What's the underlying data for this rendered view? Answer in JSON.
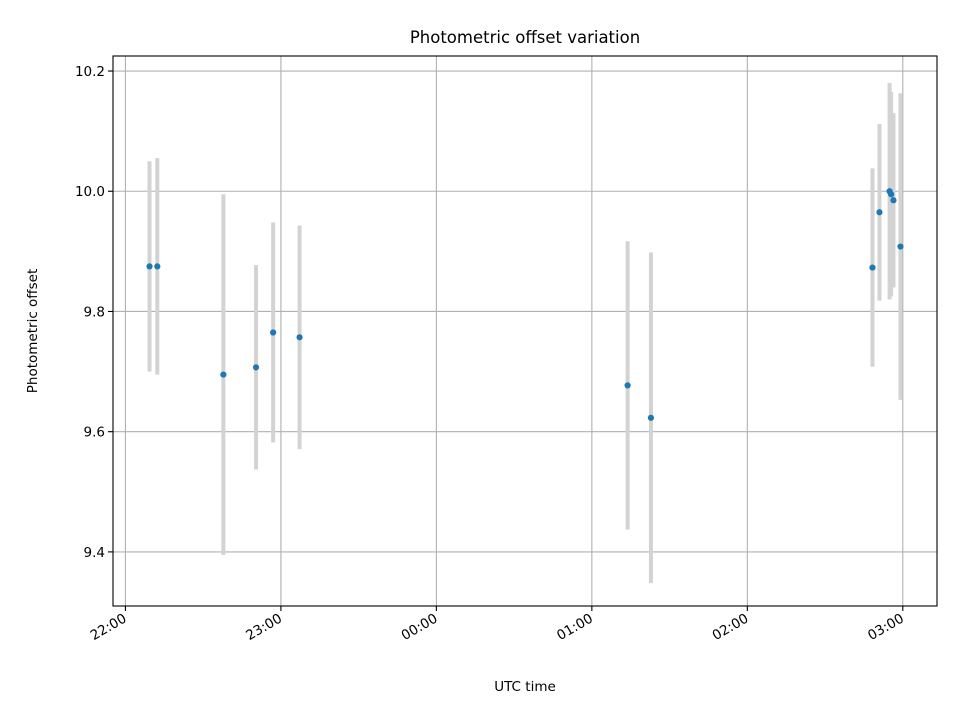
{
  "chart_data": {
    "type": "scatter",
    "title": "Photometric offset variation",
    "xlabel": "UTC time",
    "ylabel": "Photometric offset",
    "x_tick_labels": [
      "22:00",
      "23:00",
      "00:00",
      "01:00",
      "02:00",
      "03:00"
    ],
    "x_ticks_hours": [
      0,
      1,
      2,
      3,
      4,
      5
    ],
    "xlim_hours": [
      -0.08,
      5.22
    ],
    "ylim": [
      9.31,
      10.225
    ],
    "y_ticks": [
      9.4,
      9.6,
      9.8,
      10.0,
      10.2
    ],
    "y_tick_labels": [
      "9.4",
      "9.6",
      "9.8",
      "10.0",
      "10.2"
    ],
    "grid": true,
    "marker_color": "#1f77b4",
    "errorbar_color": "#d3d3d3",
    "points": [
      {
        "time": "22:09",
        "x_hours": 0.155,
        "y": 9.875,
        "err": 0.175
      },
      {
        "time": "22:12",
        "x_hours": 0.205,
        "y": 9.875,
        "err": 0.18
      },
      {
        "time": "22:38",
        "x_hours": 0.63,
        "y": 9.695,
        "err": 0.3
      },
      {
        "time": "22:50",
        "x_hours": 0.84,
        "y": 9.707,
        "err": 0.17
      },
      {
        "time": "22:57",
        "x_hours": 0.95,
        "y": 9.765,
        "err": 0.183
      },
      {
        "time": "23:07",
        "x_hours": 1.12,
        "y": 9.757,
        "err": 0.186
      },
      {
        "time": "01:14",
        "x_hours": 3.23,
        "y": 9.677,
        "err": 0.24
      },
      {
        "time": "01:23",
        "x_hours": 3.38,
        "y": 9.623,
        "err": 0.275
      },
      {
        "time": "02:48",
        "x_hours": 4.805,
        "y": 9.873,
        "err": 0.165
      },
      {
        "time": "02:51",
        "x_hours": 4.85,
        "y": 9.965,
        "err": 0.147
      },
      {
        "time": "02:55",
        "x_hours": 4.915,
        "y": 10.0,
        "err": 0.18
      },
      {
        "time": "02:55",
        "x_hours": 4.925,
        "y": 9.995,
        "err": 0.17
      },
      {
        "time": "02:56",
        "x_hours": 4.94,
        "y": 9.985,
        "err": 0.145
      },
      {
        "time": "02:59",
        "x_hours": 4.985,
        "y": 9.908,
        "err": 0.255
      }
    ]
  }
}
